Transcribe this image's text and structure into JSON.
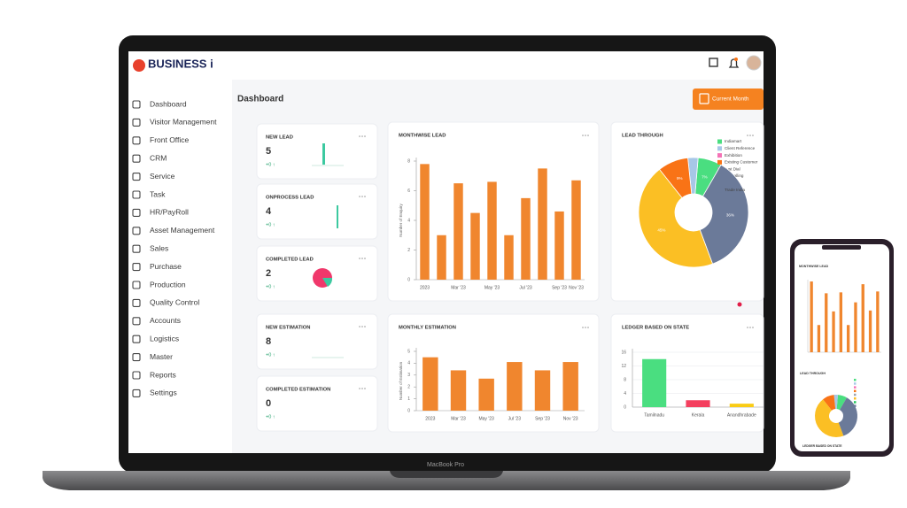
{
  "brand": "BUSINESS i",
  "sidebar": [
    "Dashboard",
    "Visitor Management",
    "Front Office",
    "CRM",
    "Service",
    "Task",
    "HR/PayRoll",
    "Asset Management",
    "Sales",
    "Purchase",
    "Production",
    "Quality Control",
    "Accounts",
    "Logistics",
    "Master",
    "Reports",
    "Settings"
  ],
  "page_title": "Dashboard",
  "button": "Current Month",
  "stat_cards": [
    {
      "title": "NEW LEAD",
      "value": 5,
      "change": "+0 ↑"
    },
    {
      "title": "ONPROCESS LEAD",
      "value": 4,
      "change": "+0 ↑"
    },
    {
      "title": "COMPLETED LEAD",
      "value": 2,
      "change": "+0 ↑"
    },
    {
      "title": "NEW ESTIMATION",
      "value": 8,
      "change": "+0 ↑"
    },
    {
      "title": "COMPLETED ESTIMATION",
      "value": 0,
      "change": "+0 ↑"
    }
  ],
  "chart_data": [
    {
      "type": "bar",
      "title": "MONTHWISE LEAD",
      "y_label": "Number of Enquiry",
      "color": "#f0862e",
      "categories": [
        "2023",
        null,
        "Mar '23",
        null,
        "May '23",
        null,
        "Jul '23",
        null,
        "Sep '23",
        "Nov '23"
      ],
      "values": [
        7.8,
        3,
        6.5,
        4.5,
        6.6,
        3,
        5.5,
        7.5,
        4.6,
        6.7
      ],
      "ylim": [
        0,
        8
      ],
      "yticks": [
        0,
        2,
        4,
        6,
        8
      ]
    },
    {
      "type": "pie",
      "title": "LEAD THROUGH",
      "categories": [
        "Indiamart",
        "Client Reference",
        "Exhibition",
        "Existing Customer",
        "Just Dial",
        "Telecalling",
        "LinkedIn",
        "Trade India"
      ],
      "values": [
        7,
        3,
        0,
        9,
        0,
        45,
        0,
        36
      ],
      "value_labels": [
        "7%",
        null,
        null,
        "9%",
        null,
        "45%",
        null,
        "36%"
      ],
      "colors": [
        "#4ade80",
        "#a7c7e7",
        "#f472b6",
        "#f97316",
        "#9ca3af",
        "#fbbf24",
        "#22c55e",
        "#6b7a99"
      ]
    },
    {
      "type": "bar",
      "title": "MONTHLY ESTIMATION",
      "y_label": "Number of Estimation",
      "color": "#f0862e",
      "categories": [
        "2023",
        "Mar '23",
        "May '23",
        "Jul '23",
        "Sep '23",
        "Nov '23"
      ],
      "values": [
        4.5,
        3.4,
        2.7,
        4.1,
        3.4,
        4.1
      ],
      "ylim": [
        0,
        5
      ],
      "yticks": [
        0,
        1,
        2,
        3,
        4,
        5
      ]
    },
    {
      "type": "bar",
      "title": "LEDGER BASED ON STATE",
      "categories": [
        "Tamilnadu",
        "Kerala",
        "Anandhrabade"
      ],
      "values": [
        14,
        2,
        1
      ],
      "colors": [
        "#4ade80",
        "#f43f5e",
        "#facc15"
      ],
      "ylim": [
        0,
        16
      ],
      "yticks": [
        0,
        4,
        8,
        12,
        16
      ],
      "grid": true
    }
  ],
  "device": "MacBook Pro"
}
